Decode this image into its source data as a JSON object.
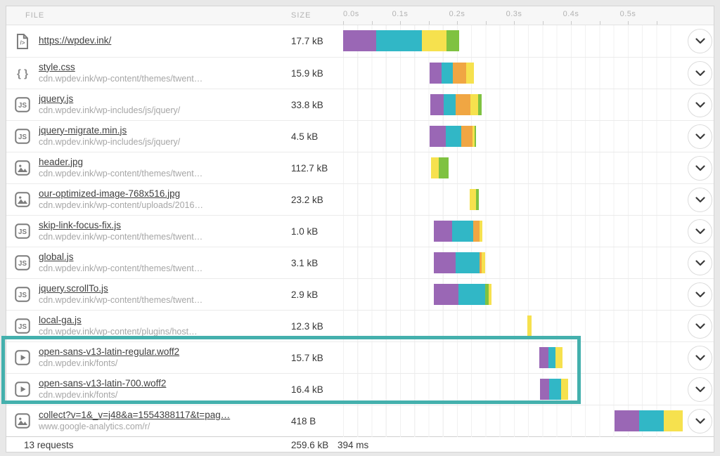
{
  "header": {
    "file_label": "FILE",
    "size_label": "SIZE",
    "axis_ticks": [
      {
        "t": 0.0,
        "label": "0.0s"
      },
      {
        "t": 0.1,
        "label": "0.1s"
      },
      {
        "t": 0.2,
        "label": "0.2s"
      },
      {
        "t": 0.3,
        "label": "0.3s"
      },
      {
        "t": 0.4,
        "label": "0.4s"
      },
      {
        "t": 0.5,
        "label": "0.5s"
      }
    ]
  },
  "colors": {
    "purple": "#9a67b5",
    "teal": "#31b7c6",
    "yellow": "#f6e14e",
    "green": "#7fc241",
    "orange": "#f0a643",
    "highlight": "#44b0ad"
  },
  "rows": [
    {
      "icon": "html-doc",
      "file": "https://wpdev.ink/",
      "url": "",
      "size": "17.7 kB",
      "bar": {
        "start": 0.0,
        "segments": [
          {
            "c": "purple",
            "d": 0.058
          },
          {
            "c": "teal",
            "d": 0.08
          },
          {
            "c": "yellow",
            "d": 0.043
          },
          {
            "c": "green",
            "d": 0.023
          }
        ]
      }
    },
    {
      "icon": "css",
      "file": "style.css",
      "url": "cdn.wpdev.ink/wp-content/themes/twent…",
      "size": "15.9 kB",
      "bar": {
        "start": 0.152,
        "segments": [
          {
            "c": "purple",
            "d": 0.021
          },
          {
            "c": "teal",
            "d": 0.02
          },
          {
            "c": "orange",
            "d": 0.023
          },
          {
            "c": "yellow",
            "d": 0.014
          }
        ]
      }
    },
    {
      "icon": "js",
      "file": "jquery.js",
      "url": "cdn.wpdev.ink/wp-includes/js/jquery/",
      "size": "33.8 kB",
      "bar": {
        "start": 0.153,
        "segments": [
          {
            "c": "purple",
            "d": 0.023
          },
          {
            "c": "teal",
            "d": 0.022
          },
          {
            "c": "orange",
            "d": 0.025
          },
          {
            "c": "yellow",
            "d": 0.014
          },
          {
            "c": "green",
            "d": 0.006
          }
        ]
      }
    },
    {
      "icon": "js",
      "file": "jquery-migrate.min.js",
      "url": "cdn.wpdev.ink/wp-includes/js/jquery/",
      "size": "4.5 kB",
      "bar": {
        "start": 0.152,
        "segments": [
          {
            "c": "purple",
            "d": 0.028
          },
          {
            "c": "teal",
            "d": 0.027
          },
          {
            "c": "orange",
            "d": 0.02
          },
          {
            "c": "yellow",
            "d": 0.004
          },
          {
            "c": "green",
            "d": 0.003
          }
        ]
      }
    },
    {
      "icon": "image",
      "file": "header.jpg",
      "url": "cdn.wpdev.ink/wp-content/themes/twent…",
      "size": "112.7 kB",
      "bar": {
        "start": 0.154,
        "segments": [
          {
            "c": "yellow",
            "d": 0.014
          },
          {
            "c": "green",
            "d": 0.017
          }
        ]
      }
    },
    {
      "icon": "image",
      "file": "our-optimized-image-768x516.jpg",
      "url": "cdn.wpdev.ink/wp-content/uploads/2016…",
      "size": "23.2 kB",
      "bar": {
        "start": 0.222,
        "segments": [
          {
            "c": "yellow",
            "d": 0.011
          },
          {
            "c": "green",
            "d": 0.005
          }
        ]
      }
    },
    {
      "icon": "js",
      "file": "skip-link-focus-fix.js",
      "url": "cdn.wpdev.ink/wp-content/themes/twent…",
      "size": "1.0 kB",
      "bar": {
        "start": 0.159,
        "segments": [
          {
            "c": "purple",
            "d": 0.032
          },
          {
            "c": "teal",
            "d": 0.037
          },
          {
            "c": "orange",
            "d": 0.011
          },
          {
            "c": "yellow",
            "d": 0.005
          }
        ]
      }
    },
    {
      "icon": "js",
      "file": "global.js",
      "url": "cdn.wpdev.ink/wp-content/themes/twent…",
      "size": "3.1 kB",
      "bar": {
        "start": 0.159,
        "segments": [
          {
            "c": "purple",
            "d": 0.038
          },
          {
            "c": "teal",
            "d": 0.042
          },
          {
            "c": "orange",
            "d": 0.004
          },
          {
            "c": "yellow",
            "d": 0.007
          }
        ]
      }
    },
    {
      "icon": "js",
      "file": "jquery.scrollTo.js",
      "url": "cdn.wpdev.ink/wp-content/themes/twent…",
      "size": "2.9 kB",
      "bar": {
        "start": 0.159,
        "segments": [
          {
            "c": "purple",
            "d": 0.043
          },
          {
            "c": "teal",
            "d": 0.048
          },
          {
            "c": "green",
            "d": 0.006
          },
          {
            "c": "yellow",
            "d": 0.005
          }
        ]
      }
    },
    {
      "icon": "js",
      "file": "local-ga.js",
      "url": "cdn.wpdev.ink/wp-content/plugins/host…",
      "size": "12.3 kB",
      "bar": {
        "start": 0.323,
        "segments": [
          {
            "c": "yellow",
            "d": 0.008
          }
        ]
      }
    },
    {
      "icon": "font",
      "file": "open-sans-v13-latin-regular.woff2",
      "url": "cdn.wpdev.ink/fonts/",
      "size": "15.7 kB",
      "bar": {
        "start": 0.344,
        "segments": [
          {
            "c": "purple",
            "d": 0.016
          },
          {
            "c": "teal",
            "d": 0.013
          },
          {
            "c": "yellow",
            "d": 0.012
          }
        ]
      }
    },
    {
      "icon": "font",
      "file": "open-sans-v13-latin-700.woff2",
      "url": "cdn.wpdev.ink/fonts/",
      "size": "16.4 kB",
      "bar": {
        "start": 0.346,
        "segments": [
          {
            "c": "purple",
            "d": 0.016
          },
          {
            "c": "teal",
            "d": 0.021
          },
          {
            "c": "yellow",
            "d": 0.012
          }
        ]
      }
    },
    {
      "icon": "image",
      "file": "collect?v=1&_v=j48&a=1554388117&t=pag…",
      "url": "www.google-analytics.com/r/",
      "size": "418 B",
      "bar": {
        "start": 0.477,
        "segments": [
          {
            "c": "purple",
            "d": 0.043
          },
          {
            "c": "teal",
            "d": 0.043
          },
          {
            "c": "yellow",
            "d": 0.033
          }
        ]
      }
    }
  ],
  "footer": {
    "requests": "13 requests",
    "total_size": "259.6 kB",
    "total_time": "394 ms"
  },
  "highlight": {
    "first_row": 11,
    "last_row": 12
  }
}
